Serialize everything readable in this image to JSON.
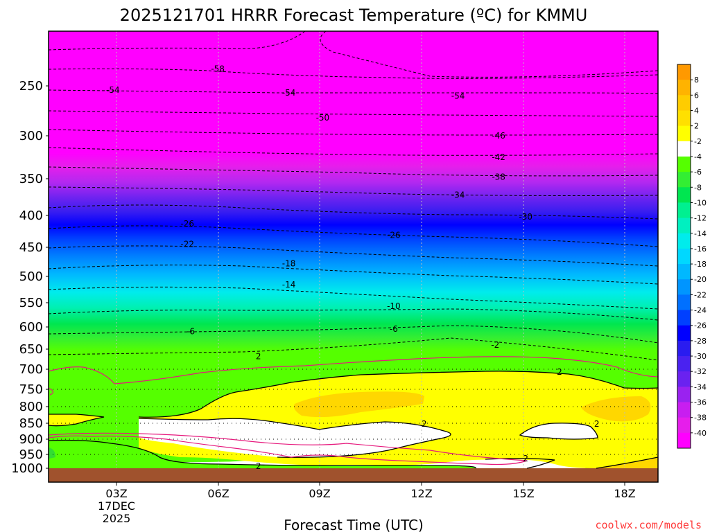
{
  "chart_data": {
    "type": "heatmap",
    "title": "2025121701 HRRR Forecast Temperature (ºC) for KMMU",
    "xlabel": "Forecast Time (UTC)",
    "ylabel": "",
    "credit": "coolwx.com/models",
    "x_ticks": [
      "03Z",
      "06Z",
      "09Z",
      "12Z",
      "15Z",
      "18Z"
    ],
    "x_date_lines": [
      "17DEC",
      "2025"
    ],
    "y_ticks": [
      "250",
      "300",
      "350",
      "400",
      "450",
      "500",
      "550",
      "600",
      "650",
      "700",
      "750",
      "800",
      "850",
      "900",
      "950",
      "1000"
    ],
    "colorbar_labels": [
      "8",
      "6",
      "4",
      "2",
      "-2",
      "-4",
      "-6",
      "-8",
      "-10",
      "-12",
      "-14",
      "-16",
      "-18",
      "-20",
      "-22",
      "-24",
      "-26",
      "-28",
      "-30",
      "-32",
      "-34",
      "-36",
      "-38",
      "-40"
    ],
    "colorbar_colors": [
      "#ff9900",
      "#ffb300",
      "#ffcc00",
      "#ffe000",
      "#ffff00",
      "#ffffff",
      "#55ff00",
      "#33ee33",
      "#00e650",
      "#00f090",
      "#00f0c0",
      "#00ecec",
      "#00d8ff",
      "#00b8ff",
      "#0095ff",
      "#0070ff",
      "#0040ff",
      "#0000ff",
      "#2a1cf0",
      "#4a22f0",
      "#6a22f0",
      "#9a22f0",
      "#c81ef0",
      "#e61eeb",
      "#ff00ff"
    ],
    "contour_labels": [
      {
        "text": "-58",
        "x": 4.9,
        "y": 233
      },
      {
        "text": "-54",
        "x": 1.8,
        "y": 254
      },
      {
        "text": "-54",
        "x": 7.0,
        "y": 257
      },
      {
        "text": "-54",
        "x": 12.0,
        "y": 260
      },
      {
        "text": "-50",
        "x": 8.0,
        "y": 282
      },
      {
        "text": "-46",
        "x": 13.2,
        "y": 300
      },
      {
        "text": "-42",
        "x": 13.2,
        "y": 325
      },
      {
        "text": "-38",
        "x": 13.2,
        "y": 348
      },
      {
        "text": "-34",
        "x": 12.0,
        "y": 372
      },
      {
        "text": "-30",
        "x": 14.0,
        "y": 402
      },
      {
        "text": "-26",
        "x": 4.0,
        "y": 413
      },
      {
        "text": "-26",
        "x": 10.1,
        "y": 431
      },
      {
        "text": "-22",
        "x": 4.0,
        "y": 445
      },
      {
        "text": "-18",
        "x": 7.0,
        "y": 478
      },
      {
        "text": "-14",
        "x": 7.0,
        "y": 516
      },
      {
        "text": "-10",
        "x": 10.1,
        "y": 557
      },
      {
        "text": "-6",
        "x": 4.1,
        "y": 610
      },
      {
        "text": "-6",
        "x": 10.1,
        "y": 605
      },
      {
        "text": "2",
        "x": 6.1,
        "y": 668
      },
      {
        "text": "-2",
        "x": 13.1,
        "y": 641
      },
      {
        "text": "2",
        "x": 15.0,
        "y": 707
      },
      {
        "text": "2",
        "x": 11.0,
        "y": 852
      },
      {
        "text": "2",
        "x": 16.1,
        "y": 852
      },
      {
        "text": "2",
        "x": 14.0,
        "y": 965
      },
      {
        "text": "2",
        "x": 6.1,
        "y": 992
      }
    ]
  }
}
